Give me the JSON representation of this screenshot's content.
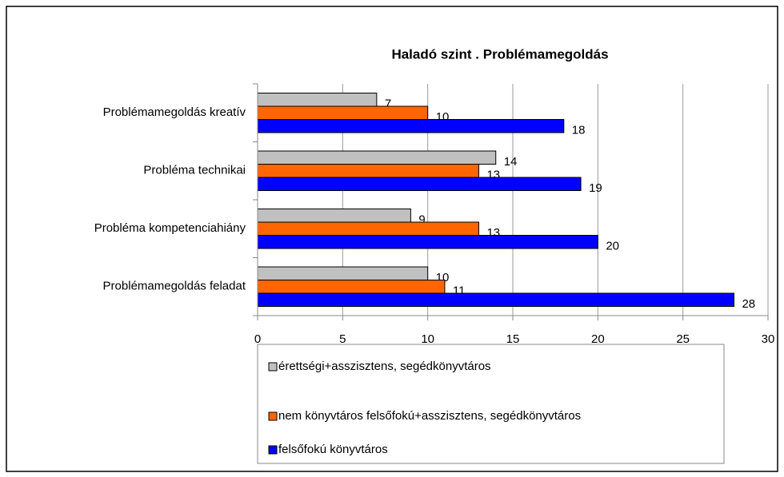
{
  "chart_data": {
    "type": "bar",
    "orientation": "horizontal",
    "title": "Haladó szint . Problémamegoldás",
    "categories": [
      "Problémamegoldás kreatív",
      "Probléma technikai",
      "Probléma kompetenciahiány",
      "Problémamegoldás feladat"
    ],
    "series": [
      {
        "name": "érettségi+asszisztens, segédkönyvtáros",
        "color": "#c0c0c0",
        "values": [
          7,
          14,
          9,
          10
        ]
      },
      {
        "name": "nem könyvtáros felsőfokú+asszisztens, segédkönyvtáros",
        "color": "#ff6600",
        "values": [
          10,
          13,
          13,
          11
        ]
      },
      {
        "name": "felsőfokú könyvtáros",
        "color": "#0000ff",
        "values": [
          18,
          19,
          20,
          28
        ]
      }
    ],
    "xlim": [
      0,
      30
    ],
    "xticks": [
      0,
      5,
      10,
      15,
      20,
      25,
      30
    ],
    "grid": true,
    "legend": "bottom"
  }
}
